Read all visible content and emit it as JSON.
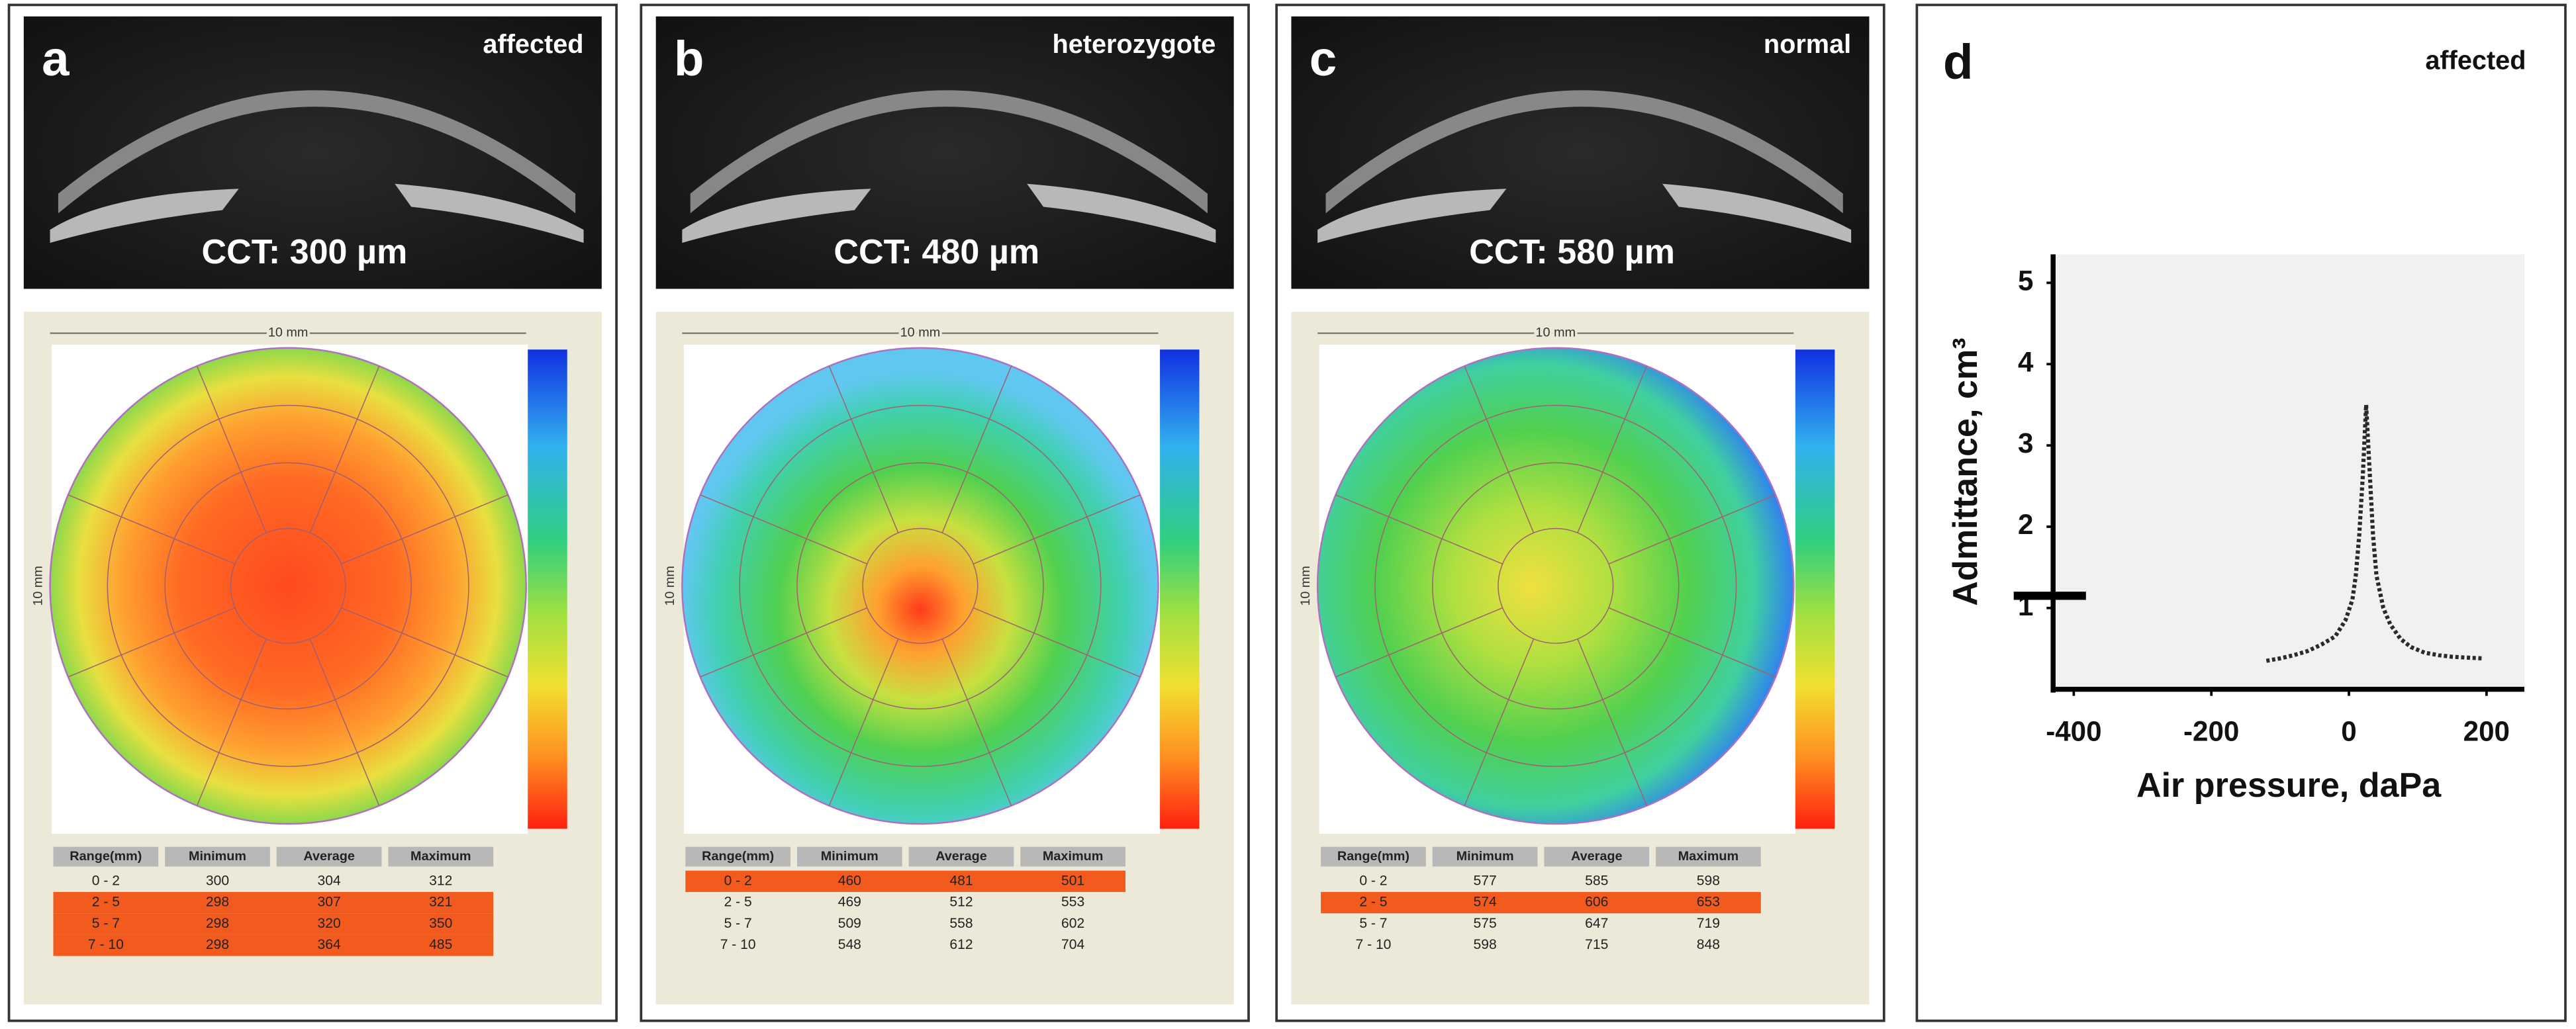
{
  "panels": [
    {
      "label": "a",
      "tag": "affected",
      "cct": "CCT: 300 µm",
      "scale": "10 mm",
      "map": "affected",
      "table": {
        "header": [
          "Range(mm)",
          "Minimum",
          "Average",
          "Maximum"
        ],
        "rows": [
          [
            "0 - 2",
            300,
            304,
            312
          ],
          [
            "2 - 5",
            298,
            307,
            321
          ],
          [
            "5 - 7",
            298,
            320,
            350
          ],
          [
            "7 - 10",
            298,
            364,
            485
          ]
        ],
        "highlight": [
          1,
          2,
          3
        ]
      }
    },
    {
      "label": "b",
      "tag": "heterozygote",
      "cct": "CCT: 480 µm",
      "scale": "10 mm",
      "map": "heterozygote",
      "table": {
        "header": [
          "Range(mm)",
          "Minimum",
          "Average",
          "Maximum"
        ],
        "rows": [
          [
            "0 - 2",
            460,
            481,
            501
          ],
          [
            "2 - 5",
            469,
            512,
            553
          ],
          [
            "5 - 7",
            509,
            558,
            602
          ],
          [
            "7 - 10",
            548,
            612,
            704
          ]
        ],
        "highlight": [
          0
        ]
      }
    },
    {
      "label": "c",
      "tag": "normal",
      "cct": "CCT: 580 µm",
      "scale": "10 mm",
      "map": "normal",
      "table": {
        "header": [
          "Range(mm)",
          "Minimum",
          "Average",
          "Maximum"
        ],
        "rows": [
          [
            "0 - 2",
            577,
            585,
            598
          ],
          [
            "2 - 5",
            574,
            606,
            653
          ],
          [
            "5 - 7",
            575,
            647,
            719
          ],
          [
            "7 - 10",
            598,
            715,
            848
          ]
        ],
        "highlight": [
          1
        ]
      }
    }
  ],
  "chart_data": {
    "type": "line",
    "label": "d",
    "tag": "affected",
    "x_label": "Air pressure, daPa",
    "y_label": "Admittance, cm³",
    "x": [
      -120,
      -100,
      -80,
      -60,
      -40,
      -20,
      -5,
      5,
      10,
      15,
      20,
      25,
      30,
      35,
      40,
      50,
      60,
      75,
      90,
      110,
      130,
      150,
      170,
      195
    ],
    "values": [
      0.35,
      0.38,
      0.42,
      0.47,
      0.55,
      0.65,
      0.85,
      1.1,
      1.4,
      1.9,
      2.6,
      3.5,
      2.7,
      1.9,
      1.4,
      1.0,
      0.8,
      0.62,
      0.52,
      0.45,
      0.42,
      0.4,
      0.39,
      0.38
    ],
    "color": "#2a2a2a",
    "reference_y": 1.15,
    "xlim": [
      -430,
      255
    ],
    "xticks": [
      -400,
      -200,
      0,
      200
    ],
    "ylim": [
      0,
      5.35
    ],
    "yticks": [
      1,
      2,
      3,
      4,
      5
    ]
  }
}
